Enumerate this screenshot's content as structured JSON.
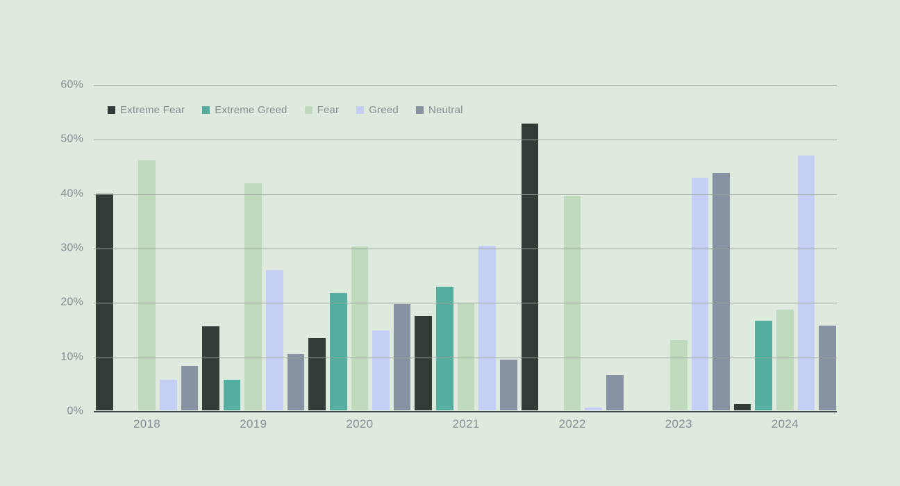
{
  "page": {
    "background_color": "#dfeade",
    "text_color": "#7f8c8e",
    "xlabel_color": "#828f94",
    "gridline_color": "#9aa49d",
    "axis_line_color": "#3e4a45"
  },
  "chart_data": {
    "type": "bar",
    "title": "",
    "xlabel": "",
    "ylabel": "",
    "categories": [
      "2018",
      "2019",
      "2020",
      "2021",
      "2022",
      "2023",
      "2024"
    ],
    "series": [
      {
        "name": "Extreme Fear",
        "color": "#2f3c38",
        "values": [
          40.0,
          15.5,
          13.3,
          17.4,
          52.9,
          0,
          1.2
        ]
      },
      {
        "name": "Extreme Greed",
        "color": "#55aea0",
        "values": [
          0,
          5.7,
          21.7,
          22.8,
          0,
          0,
          16.5
        ]
      },
      {
        "name": "Fear",
        "color": "#bfdabd",
        "values": [
          46.2,
          41.9,
          30.3,
          19.7,
          39.6,
          12.9,
          18.6
        ]
      },
      {
        "name": "Greed",
        "color": "#c5cff5",
        "values": [
          5.6,
          25.9,
          14.7,
          30.4,
          0.5,
          43.0,
          47.1
        ]
      },
      {
        "name": "Neutral",
        "color": "#8793a3",
        "values": [
          8.2,
          10.4,
          19.6,
          9.3,
          6.6,
          43.8,
          15.7
        ]
      }
    ],
    "ylim": [
      0,
      60
    ],
    "y_ticks": [
      "60%",
      "50%",
      "40%",
      "30%",
      "20%",
      "10%",
      "0%"
    ],
    "grid": true,
    "legend_position": "top-left-inside"
  }
}
